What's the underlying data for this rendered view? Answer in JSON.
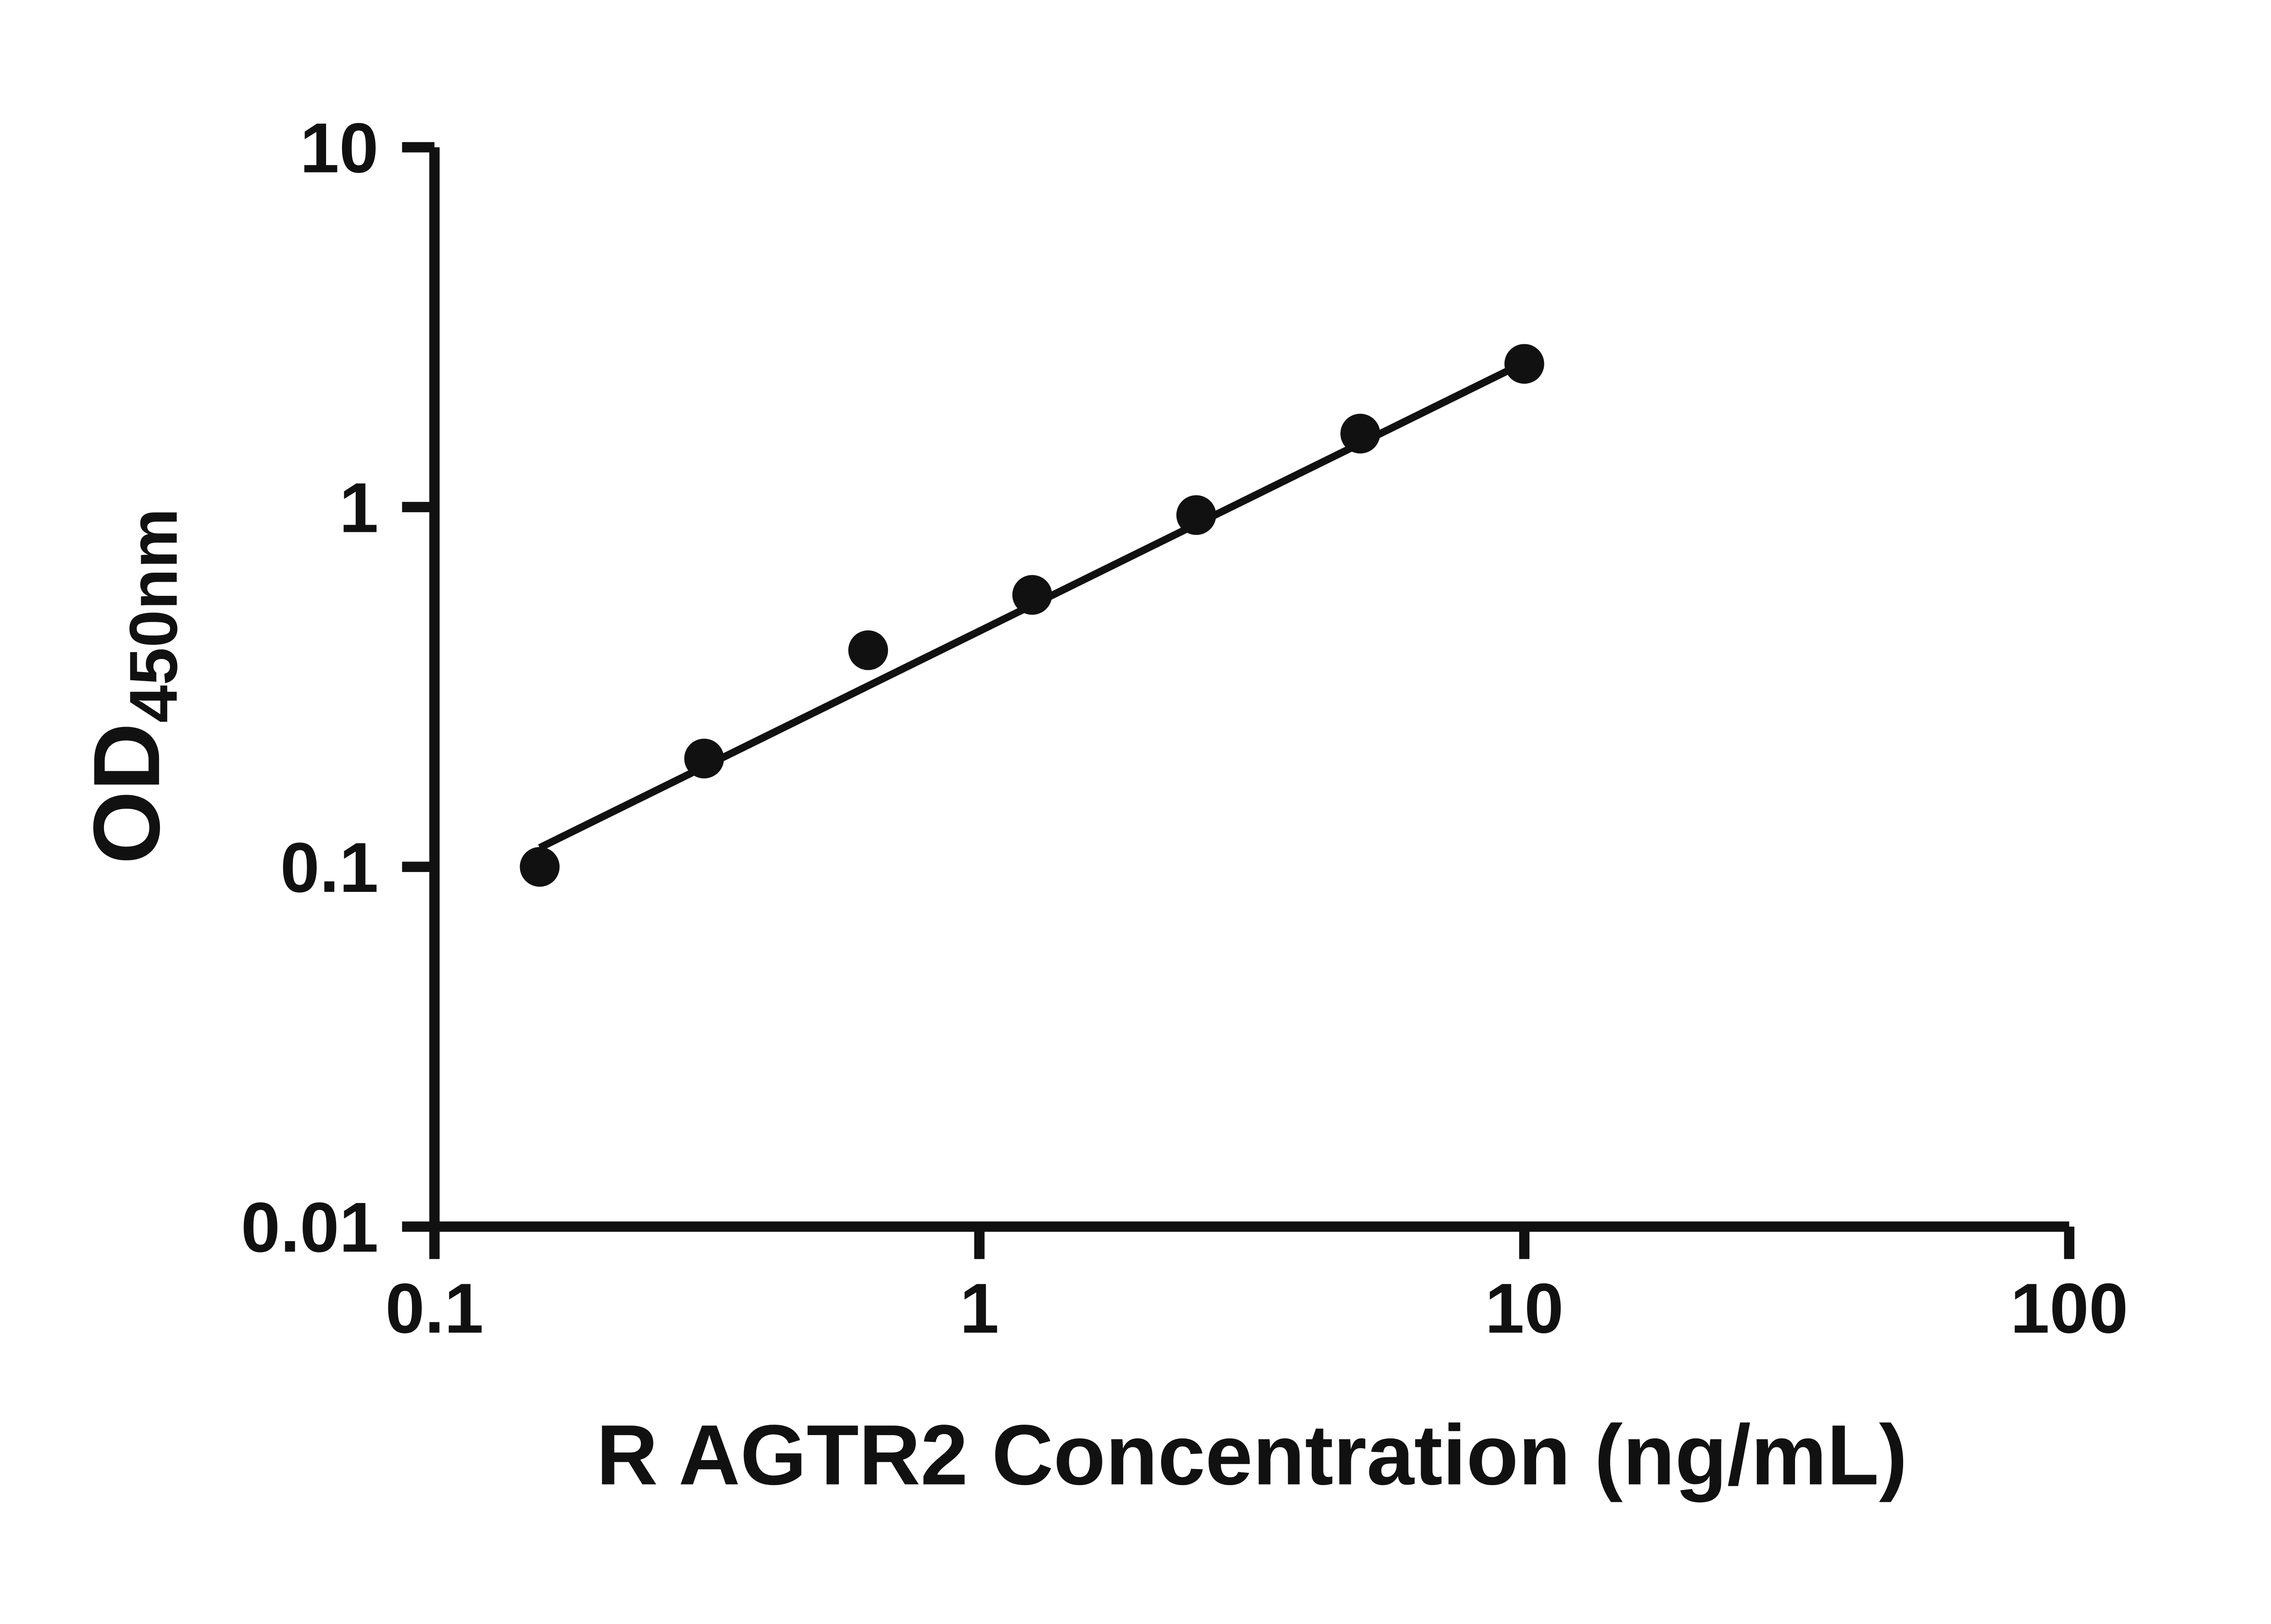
{
  "chart_data": {
    "type": "scatter",
    "xlabel": "R AGTR2 Concentration (ng/mL)",
    "ylabel_main": "OD",
    "ylabel_sub": "450nm",
    "x_scale": "log",
    "y_scale": "log",
    "xlim": [
      0.1,
      100
    ],
    "ylim": [
      0.01,
      10
    ],
    "grid": "off",
    "legend": "none",
    "x_ticks": [
      {
        "value": 0.1,
        "label": "0.1"
      },
      {
        "value": 1,
        "label": "1"
      },
      {
        "value": 10,
        "label": "10"
      },
      {
        "value": 100,
        "label": "100"
      }
    ],
    "y_ticks": [
      {
        "value": 0.01,
        "label": "0.01"
      },
      {
        "value": 0.1,
        "label": "0.1"
      },
      {
        "value": 1,
        "label": "1"
      },
      {
        "value": 10,
        "label": "10"
      }
    ],
    "points": [
      {
        "x": 0.156,
        "y": 0.1
      },
      {
        "x": 0.3125,
        "y": 0.2
      },
      {
        "x": 0.625,
        "y": 0.4
      },
      {
        "x": 1.25,
        "y": 0.57
      },
      {
        "x": 2.5,
        "y": 0.95
      },
      {
        "x": 5,
        "y": 1.6
      },
      {
        "x": 10,
        "y": 2.5
      }
    ],
    "trendline": {
      "x1": 0.156,
      "y1": 0.113,
      "x2": 10,
      "y2": 2.52
    },
    "marker_color": "#111111",
    "line_color": "#111111",
    "axis_color": "#111111"
  }
}
